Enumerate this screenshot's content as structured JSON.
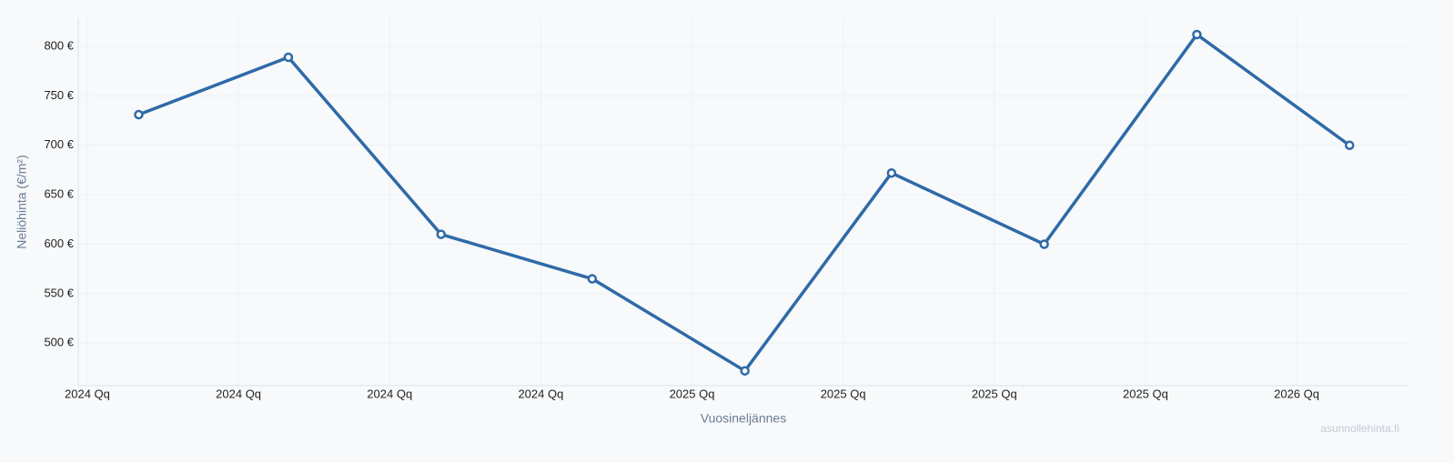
{
  "chart_data": {
    "type": "line",
    "y_label": "Neliöhinta (€/m²)",
    "x_label": "Vuosineljännes",
    "watermark": "asunnollehinta.fi",
    "x": [
      0.34,
      1.33,
      2.34,
      3.34,
      4.35,
      5.32,
      6.33,
      7.34,
      8.35
    ],
    "values": [
      731,
      789,
      610,
      565,
      472,
      672,
      600,
      812,
      700
    ],
    "color": "#2f6aa7",
    "xlim": [
      -0.06,
      8.74
    ],
    "xticks": [
      {
        "value": 0,
        "label": "2024 Qq"
      },
      {
        "value": 1,
        "label": "2024 Qq"
      },
      {
        "value": 2,
        "label": "2024 Qq"
      },
      {
        "value": 3,
        "label": "2024 Qq"
      },
      {
        "value": 4,
        "label": "2025 Qq"
      },
      {
        "value": 5,
        "label": "2025 Qq"
      },
      {
        "value": 6,
        "label": "2025 Qq"
      },
      {
        "value": 7,
        "label": "2025 Qq"
      },
      {
        "value": 8,
        "label": "2026 Qq"
      }
    ],
    "ylim": [
      457,
      828.5
    ],
    "yticks": [
      {
        "value": 500,
        "label": "500 €"
      },
      {
        "value": 550,
        "label": "550 €"
      },
      {
        "value": 600,
        "label": "600 €"
      },
      {
        "value": 650,
        "label": "650 €"
      },
      {
        "value": 700,
        "label": "700 €"
      },
      {
        "value": 750,
        "label": "750 €"
      },
      {
        "value": 800,
        "label": "800 €"
      }
    ],
    "grid": true
  }
}
